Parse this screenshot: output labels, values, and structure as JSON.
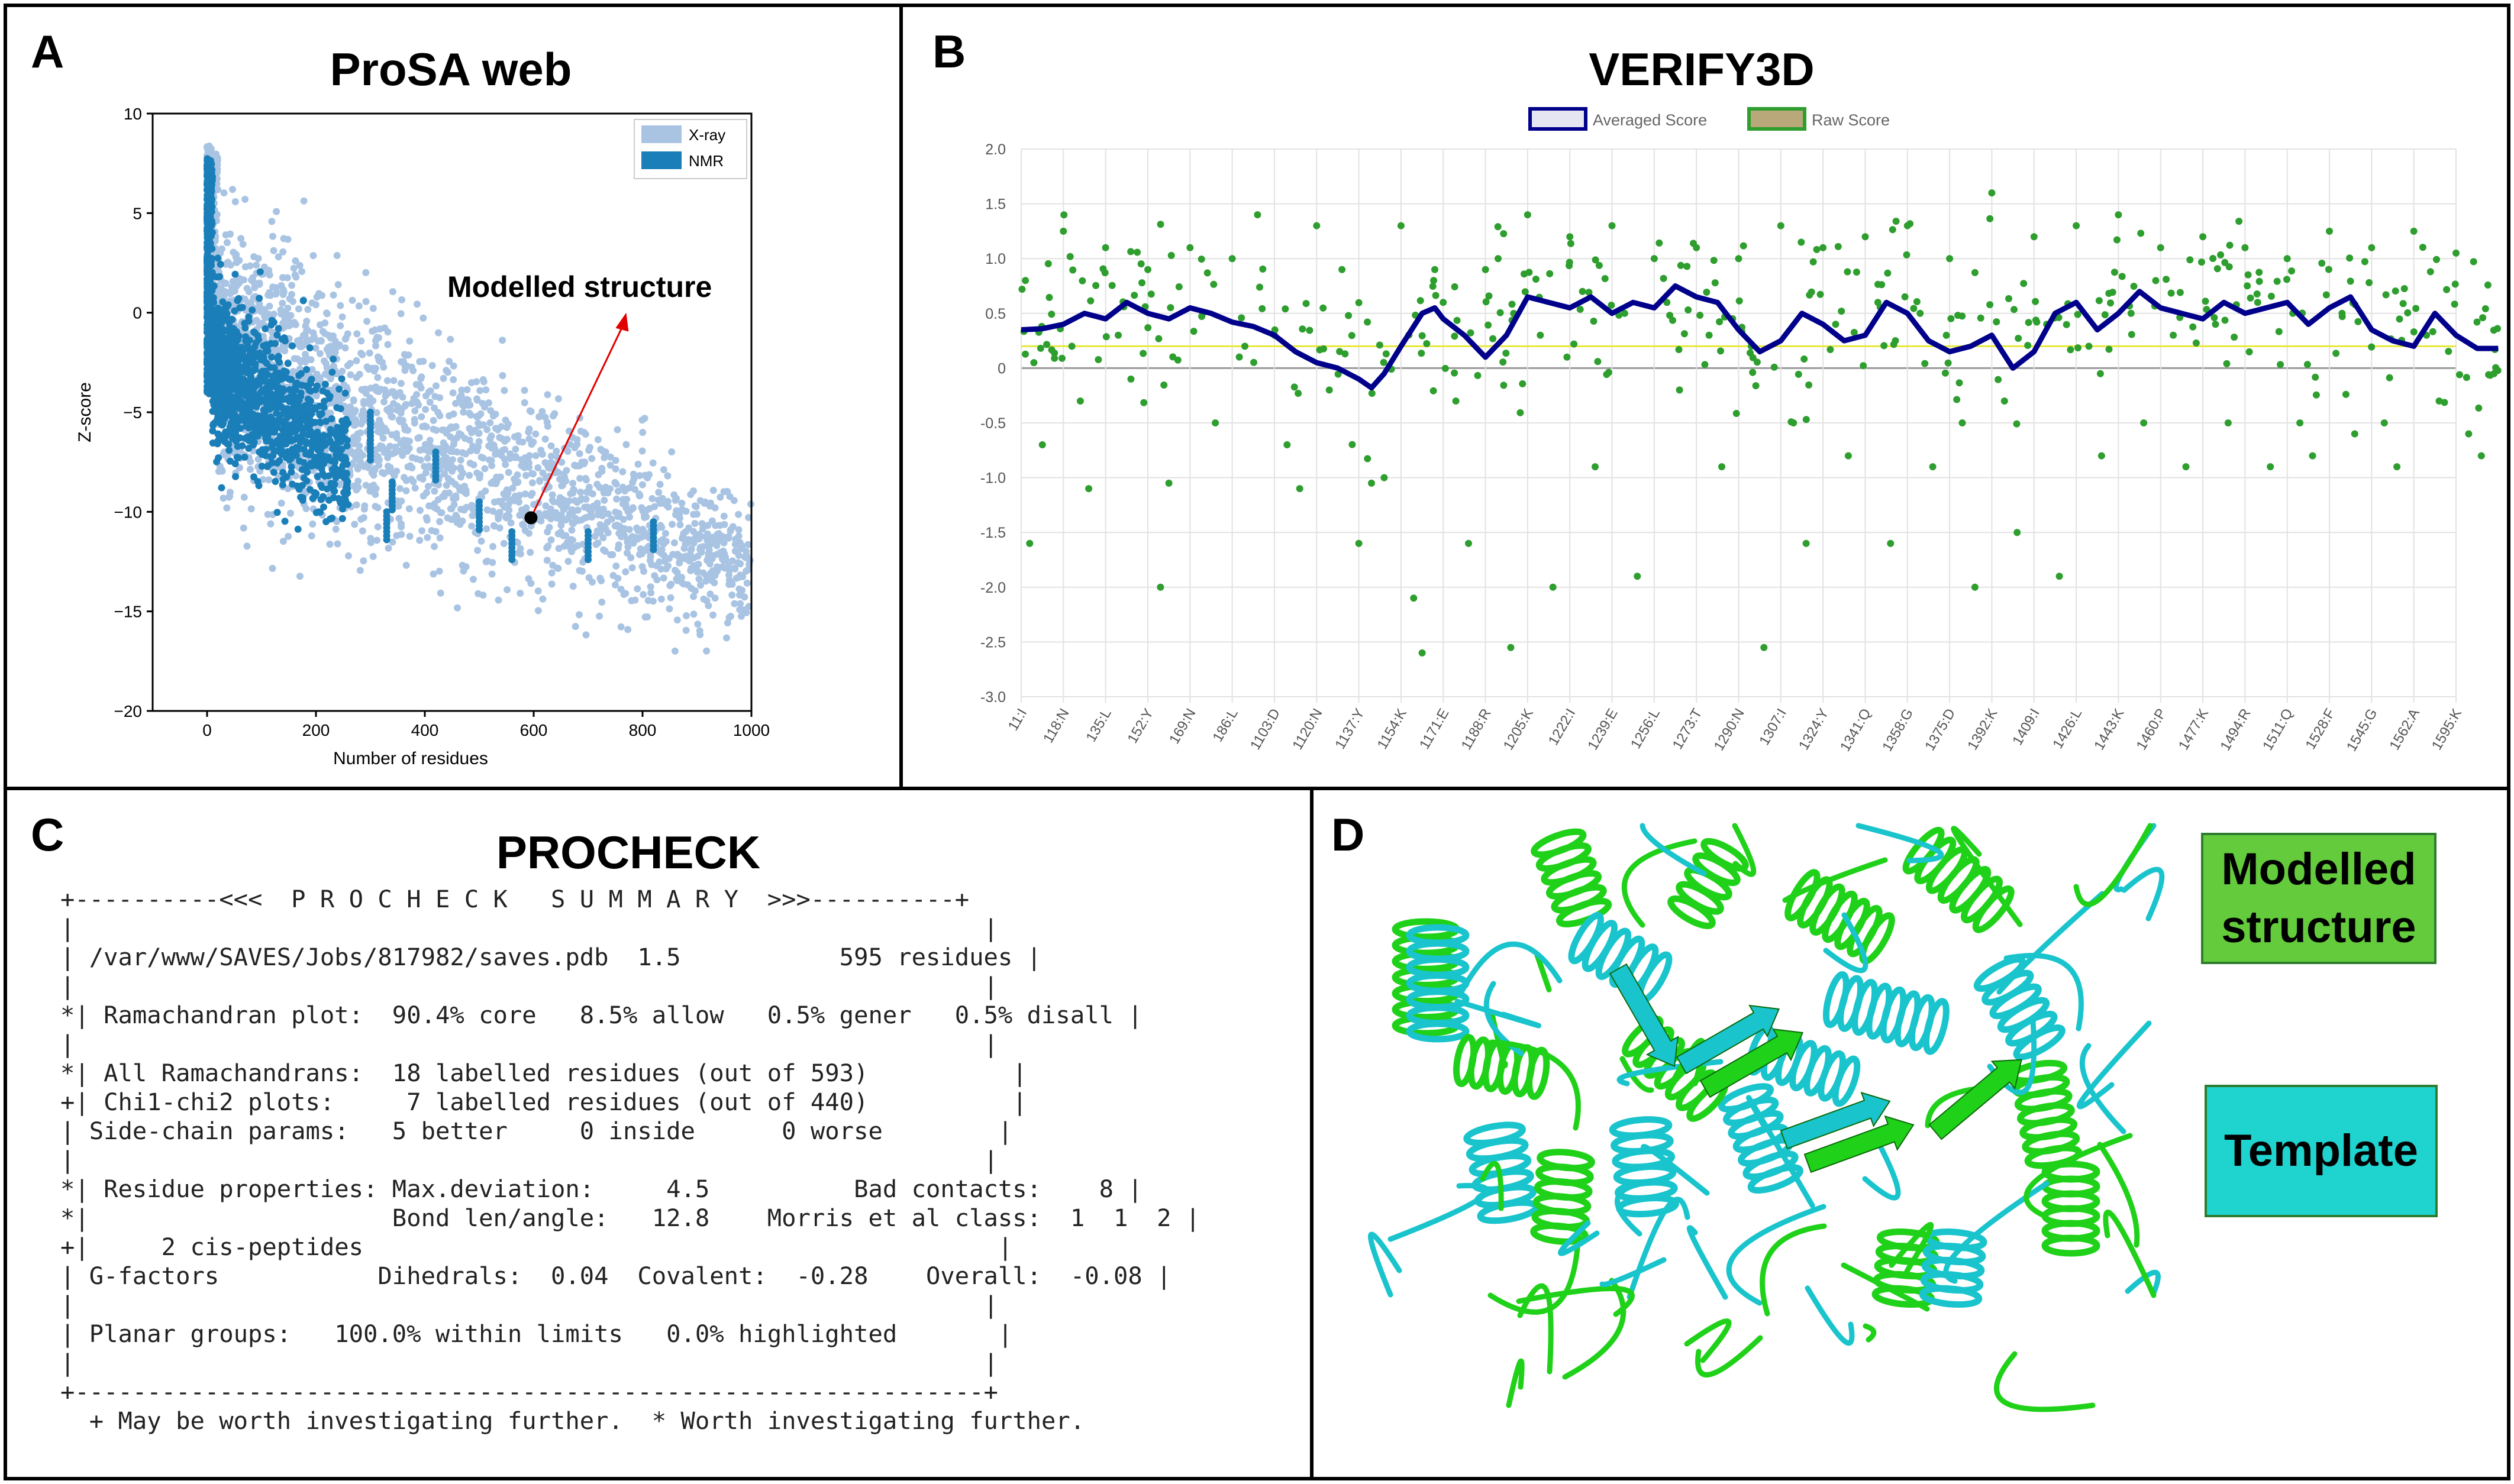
{
  "panelA": {
    "label": "A",
    "title": "ProSA web",
    "chart_data": {
      "type": "scatter",
      "xlabel": "Number of residues",
      "ylabel": "Z-score",
      "xlim": [
        -100,
        1000
      ],
      "ylim": [
        -20,
        10
      ],
      "x_ticks": [
        "0",
        "200",
        "400",
        "600",
        "800",
        "1000"
      ],
      "y_ticks": [
        "10",
        "5",
        "0",
        "−5",
        "−10",
        "−15",
        "−20"
      ],
      "legend": {
        "placement": "top-right",
        "entries": [
          {
            "name": "X-ray",
            "color": "#a9c4e3"
          },
          {
            "name": "NMR",
            "color": "#1a7fb8"
          }
        ]
      },
      "series": [
        {
          "name": "X-ray",
          "description_points": [
            [
              0,
              9.5
            ],
            [
              20,
              0
            ],
            [
              100,
              -2
            ],
            [
              200,
              -4
            ],
            [
              300,
              -6
            ],
            [
              400,
              -8
            ],
            [
              500,
              -9
            ],
            [
              600,
              -10
            ],
            [
              700,
              -11.5
            ],
            [
              800,
              -12.5
            ],
            [
              900,
              -13.5
            ],
            [
              1000,
              -14.5
            ]
          ]
        },
        {
          "name": "NMR",
          "description_points": [
            [
              0,
              9
            ],
            [
              20,
              -2
            ],
            [
              50,
              -4
            ],
            [
              100,
              -5
            ],
            [
              150,
              -6
            ],
            [
              200,
              -6.5
            ],
            [
              250,
              -8
            ]
          ]
        }
      ],
      "highlight_point": {
        "x": 595,
        "y": -10.3,
        "label": "Modelled structure"
      }
    }
  },
  "panelB": {
    "label": "B",
    "title": "VERIFY3D",
    "chart_data": {
      "type": "line",
      "legend": {
        "placement": "top",
        "entries": [
          {
            "name": "Averaged Score",
            "color": "#00008b"
          },
          {
            "name": "Raw Score",
            "color": "#2e9e2e"
          }
        ]
      },
      "ylim": [
        -3.0,
        2.0
      ],
      "y_ticks": [
        "2.0",
        "1.5",
        "1.0",
        "0.5",
        "0",
        "-0.5",
        "-1.0",
        "-1.5",
        "-2.0",
        "-2.5",
        "-3.0"
      ],
      "categories": [
        "11:I",
        "118:N",
        "135:L",
        "152:Y",
        "169:N",
        "186:L",
        "1103:D",
        "1120:N",
        "1137:Y",
        "1154:K",
        "1171:E",
        "1188:R",
        "1205:K",
        "1222:I",
        "1239:E",
        "1256:L",
        "1273:T",
        "1290:N",
        "1307:I",
        "1324:Y",
        "1341:Q",
        "1358:G",
        "1375:D",
        "1392:K",
        "1409:I",
        "1426:L",
        "1443:K",
        "1460:P",
        "1477:K",
        "1494:R",
        "1511:Q",
        "1528:F",
        "1545:G",
        "1562:A",
        "1595:K"
      ],
      "threshold": 0.2,
      "series": [
        {
          "name": "Averaged Score",
          "points": [
            [
              0,
              0.35
            ],
            [
              0.5,
              0.36
            ],
            [
              1,
              0.4
            ],
            [
              1.5,
              0.5
            ],
            [
              2,
              0.45
            ],
            [
              2.5,
              0.6
            ],
            [
              3,
              0.5
            ],
            [
              3.5,
              0.45
            ],
            [
              4,
              0.55
            ],
            [
              4.5,
              0.5
            ],
            [
              5,
              0.42
            ],
            [
              5.5,
              0.38
            ],
            [
              6,
              0.3
            ],
            [
              6.5,
              0.15
            ],
            [
              7,
              0.05
            ],
            [
              7.5,
              0.0
            ],
            [
              8,
              -0.1
            ],
            [
              8.3,
              -0.18
            ],
            [
              8.6,
              -0.05
            ],
            [
              9,
              0.2
            ],
            [
              9.5,
              0.5
            ],
            [
              9.8,
              0.55
            ],
            [
              10,
              0.45
            ],
            [
              10.5,
              0.3
            ],
            [
              11,
              0.1
            ],
            [
              11.5,
              0.3
            ],
            [
              12,
              0.65
            ],
            [
              12.5,
              0.6
            ],
            [
              13,
              0.55
            ],
            [
              13.5,
              0.65
            ],
            [
              14,
              0.5
            ],
            [
              14.5,
              0.6
            ],
            [
              15,
              0.55
            ],
            [
              15.5,
              0.75
            ],
            [
              16,
              0.65
            ],
            [
              16.5,
              0.6
            ],
            [
              17,
              0.35
            ],
            [
              17.5,
              0.15
            ],
            [
              18,
              0.25
            ],
            [
              18.5,
              0.5
            ],
            [
              19,
              0.4
            ],
            [
              19.5,
              0.25
            ],
            [
              20,
              0.3
            ],
            [
              20.5,
              0.6
            ],
            [
              21,
              0.5
            ],
            [
              21.5,
              0.25
            ],
            [
              22,
              0.15
            ],
            [
              22.5,
              0.2
            ],
            [
              23,
              0.3
            ],
            [
              23.5,
              0.0
            ],
            [
              24,
              0.15
            ],
            [
              24.5,
              0.5
            ],
            [
              25,
              0.6
            ],
            [
              25.5,
              0.35
            ],
            [
              26,
              0.5
            ],
            [
              26.5,
              0.7
            ],
            [
              27,
              0.55
            ],
            [
              27.5,
              0.5
            ],
            [
              28,
              0.45
            ],
            [
              28.5,
              0.6
            ],
            [
              29,
              0.5
            ],
            [
              29.5,
              0.55
            ],
            [
              30,
              0.6
            ],
            [
              30.5,
              0.4
            ],
            [
              31,
              0.55
            ],
            [
              31.5,
              0.65
            ],
            [
              32,
              0.35
            ],
            [
              32.5,
              0.25
            ],
            [
              33,
              0.2
            ],
            [
              33.5,
              0.5
            ],
            [
              34,
              0.3
            ],
            [
              34.5,
              0.18
            ],
            [
              35,
              0.18
            ]
          ]
        },
        {
          "name": "Raw Score",
          "points": [
            [
              0.1,
              0.8
            ],
            [
              0.3,
              0.05
            ],
            [
              0.5,
              -0.7
            ],
            [
              0.2,
              -1.6
            ],
            [
              1,
              1.25
            ],
            [
              1.2,
              0.2
            ],
            [
              1.4,
              -0.3
            ],
            [
              1.6,
              -1.1
            ],
            [
              2,
              1.1
            ],
            [
              2.3,
              0.3
            ],
            [
              2.6,
              -0.1
            ],
            [
              3,
              0.9
            ],
            [
              3.3,
              -2.0
            ],
            [
              3.5,
              -1.05
            ],
            [
              4,
              1.1
            ],
            [
              4.3,
              0.5
            ],
            [
              4.6,
              -0.5
            ],
            [
              5,
              1.0
            ],
            [
              5.3,
              0.2
            ],
            [
              5.6,
              1.4
            ],
            [
              6,
              0.3
            ],
            [
              6.3,
              -0.7
            ],
            [
              6.6,
              -1.1
            ],
            [
              7,
              1.3
            ],
            [
              7.3,
              -0.2
            ],
            [
              7.6,
              0.9
            ],
            [
              8,
              -1.6
            ],
            [
              8.3,
              -1.05
            ],
            [
              8.6,
              -1.0
            ],
            [
              9,
              1.3
            ],
            [
              9.3,
              -2.1
            ],
            [
              9.5,
              -2.6
            ],
            [
              9.8,
              0.9
            ],
            [
              10,
              0.6
            ],
            [
              10.3,
              -0.3
            ],
            [
              10.6,
              -1.6
            ],
            [
              11,
              0.9
            ],
            [
              11.3,
              1.0
            ],
            [
              11.6,
              -2.55
            ],
            [
              12,
              1.4
            ],
            [
              12.3,
              0.3
            ],
            [
              12.6,
              -2.0
            ],
            [
              13,
              1.2
            ],
            [
              13.3,
              0.7
            ],
            [
              13.6,
              -0.9
            ],
            [
              14,
              1.3
            ],
            [
              14.3,
              0.5
            ],
            [
              14.6,
              -1.9
            ],
            [
              15,
              1.0
            ],
            [
              15.3,
              0.6
            ],
            [
              15.6,
              -0.2
            ],
            [
              16,
              1.1
            ],
            [
              16.3,
              0.3
            ],
            [
              16.6,
              -0.9
            ],
            [
              17,
              1.0
            ],
            [
              17.3,
              0.2
            ],
            [
              17.6,
              -2.55
            ],
            [
              18,
              1.3
            ],
            [
              18.3,
              -0.5
            ],
            [
              18.6,
              -1.6
            ],
            [
              19,
              1.1
            ],
            [
              19.3,
              0.4
            ],
            [
              19.6,
              -0.8
            ],
            [
              20,
              1.2
            ],
            [
              20.3,
              0.6
            ],
            [
              20.6,
              -1.6
            ],
            [
              21,
              1.3
            ],
            [
              21.3,
              0.5
            ],
            [
              21.6,
              -0.9
            ],
            [
              22,
              1.0
            ],
            [
              22.3,
              -0.5
            ],
            [
              22.6,
              -2.0
            ],
            [
              23,
              1.6
            ],
            [
              23.3,
              -0.3
            ],
            [
              23.6,
              -1.5
            ],
            [
              24,
              1.2
            ],
            [
              24.3,
              0.4
            ],
            [
              24.6,
              -1.9
            ],
            [
              25,
              1.3
            ],
            [
              25.3,
              0.2
            ],
            [
              25.6,
              -0.8
            ],
            [
              26,
              1.4
            ],
            [
              26.3,
              0.5
            ],
            [
              26.6,
              -0.5
            ],
            [
              27,
              1.1
            ],
            [
              27.3,
              0.3
            ],
            [
              27.6,
              -0.9
            ],
            [
              28,
              1.2
            ],
            [
              28.3,
              0.4
            ],
            [
              28.6,
              -0.5
            ],
            [
              29,
              1.1
            ],
            [
              29.3,
              0.6
            ],
            [
              29.6,
              -0.9
            ],
            [
              30,
              1.0
            ],
            [
              30.3,
              -0.5
            ],
            [
              30.6,
              -0.8
            ],
            [
              31,
              1.25
            ],
            [
              31.3,
              0.5
            ],
            [
              31.6,
              -0.6
            ],
            [
              32,
              1.1
            ],
            [
              32.3,
              -0.5
            ],
            [
              32.6,
              -0.9
            ],
            [
              33,
              1.25
            ],
            [
              33.3,
              0.3
            ],
            [
              33.6,
              -0.3
            ],
            [
              34,
              1.05
            ],
            [
              34.3,
              -0.6
            ],
            [
              34.6,
              -0.8
            ],
            [
              34.9,
              -0.05
            ]
          ]
        }
      ]
    }
  },
  "panelC": {
    "label": "C",
    "title": "PROCHECK",
    "summary_lines": [
      "+----------<<<  P R O C H E C K   S U M M A R Y  >>>----------+",
      "|                                                               |",
      "| /var/www/SAVES/Jobs/817982/saves.pdb  1.5           595 residues |",
      "|                                                               |",
      "*| Ramachandran plot:  90.4% core   8.5% allow   0.5% gener   0.5% disall |",
      "|                                                               |",
      "*| All Ramachandrans:  18 labelled residues (out of 593)          |",
      "+| Chi1-chi2 plots:     7 labelled residues (out of 440)          |",
      "| Side-chain params:   5 better     0 inside      0 worse        |",
      "|                                                               |",
      "*| Residue properties: Max.deviation:     4.5          Bad contacts:    8 |",
      "*|                     Bond len/angle:   12.8    Morris et al class:  1  1  2 |",
      "+|     2 cis-peptides                                            |",
      "| G-factors           Dihedrals:  0.04  Covalent:  -0.28    Overall:  -0.08 |",
      "|                                                               |",
      "| Planar groups:   100.0% within limits   0.0% highlighted       |",
      "|                                                               |",
      "+---------------------------------------------------------------+",
      "  + May be worth investigating further.  * Worth investigating further."
    ]
  },
  "panelD": {
    "label": "D",
    "modelled_label": "Modelled structure",
    "template_label": "Template",
    "colors": {
      "modelled": "#1fd118",
      "template": "#19c4cc"
    }
  }
}
